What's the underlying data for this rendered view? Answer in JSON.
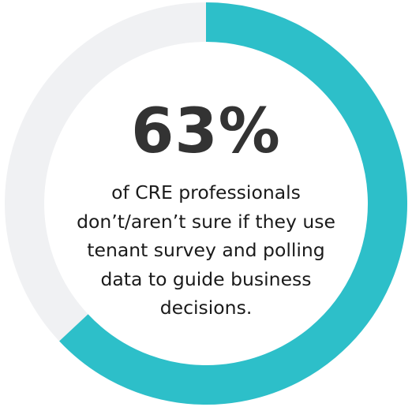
{
  "chart_data": {
    "type": "pie",
    "variant": "donut",
    "value_percent": 63,
    "remainder_percent": 37,
    "colors": {
      "value": "#2dbfc9",
      "remainder": "#f0f1f3"
    },
    "center_value": "63%",
    "caption": "of CRE professionals don’t/aren’t sure if they use tenant survey and polling data to guide business decisions."
  }
}
